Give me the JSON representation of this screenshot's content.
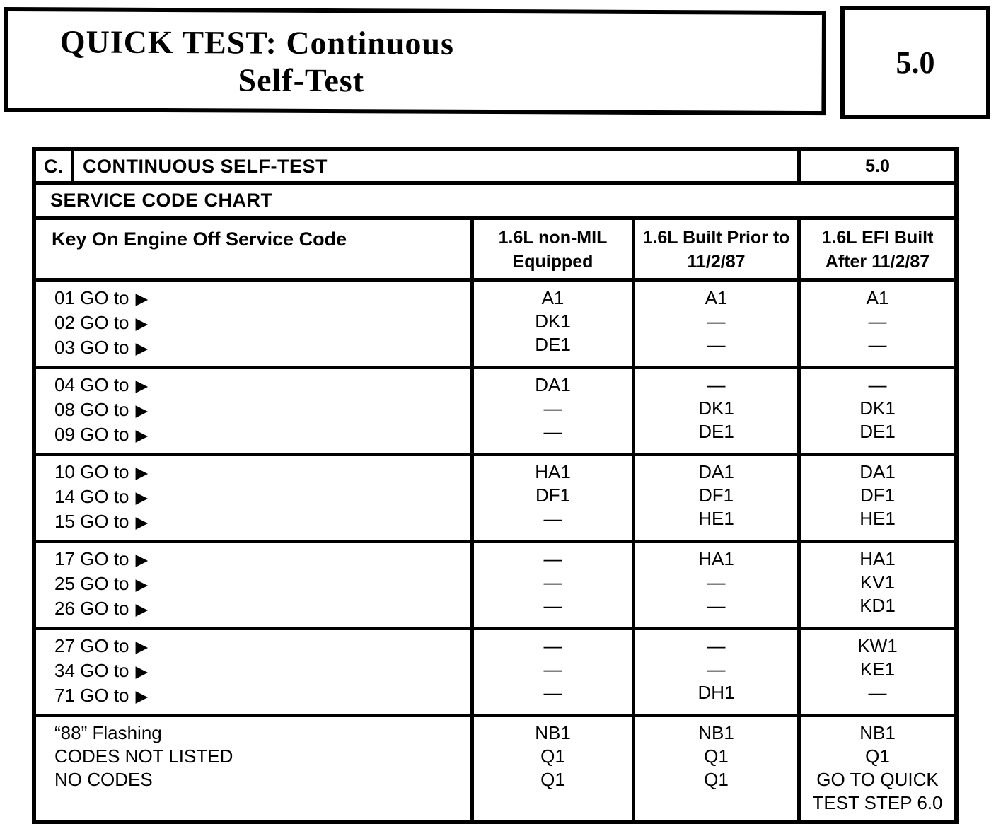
{
  "header": {
    "title_line1": "QUICK TEST: Continuous",
    "title_line2": "Self-Test",
    "section_number": "5.0"
  },
  "icons": {
    "go_to_arrow": "▶"
  },
  "table": {
    "row_letter": "C.",
    "row_title": "CONTINUOUS SELF-TEST",
    "row_number": "5.0",
    "chart_title": "SERVICE CODE CHART",
    "col_headers": [
      "Key On Engine Off Service Code",
      "1.6L non-MIL Equipped",
      "1.6L Built Prior to 11/2/87",
      "1.6L EFI Built After 11/2/87"
    ],
    "groups": [
      {
        "codes": [
          "01 GO to",
          "02 GO to",
          "03 GO to"
        ],
        "non_mil": [
          "A1",
          "DK1",
          "DE1"
        ],
        "built_prior": [
          "A1",
          "—",
          "—"
        ],
        "efi_after": [
          "A1",
          "—",
          "—"
        ]
      },
      {
        "codes": [
          "04 GO to",
          "08 GO to",
          "09 GO to"
        ],
        "non_mil": [
          "DA1",
          "—",
          "—"
        ],
        "built_prior": [
          "—",
          "DK1",
          "DE1"
        ],
        "efi_after": [
          "—",
          "DK1",
          "DE1"
        ]
      },
      {
        "codes": [
          "10 GO to",
          "14 GO to",
          "15 GO to"
        ],
        "non_mil": [
          "HA1",
          "DF1",
          "—"
        ],
        "built_prior": [
          "DA1",
          "DF1",
          "HE1"
        ],
        "efi_after": [
          "DA1",
          "DF1",
          "HE1"
        ]
      },
      {
        "codes": [
          "17 GO to",
          "25 GO to",
          "26 GO to"
        ],
        "non_mil": [
          "—",
          "—",
          "—"
        ],
        "built_prior": [
          "HA1",
          "—",
          "—"
        ],
        "efi_after": [
          "HA1",
          "KV1",
          "KD1"
        ]
      },
      {
        "codes": [
          "27 GO to",
          "34 GO to",
          "71 GO to"
        ],
        "non_mil": [
          "—",
          "—",
          "—"
        ],
        "built_prior": [
          "—",
          "—",
          "DH1"
        ],
        "efi_after": [
          "KW1",
          "KE1",
          "—"
        ]
      },
      {
        "codes": [
          "“88” Flashing",
          "CODES NOT LISTED",
          "NO CODES"
        ],
        "non_mil": [
          "NB1",
          "Q1",
          "Q1"
        ],
        "built_prior": [
          "NB1",
          "Q1",
          "Q1"
        ],
        "efi_after": [
          "NB1",
          "Q1",
          "GO TO QUICK TEST STEP 6.0"
        ]
      }
    ]
  }
}
